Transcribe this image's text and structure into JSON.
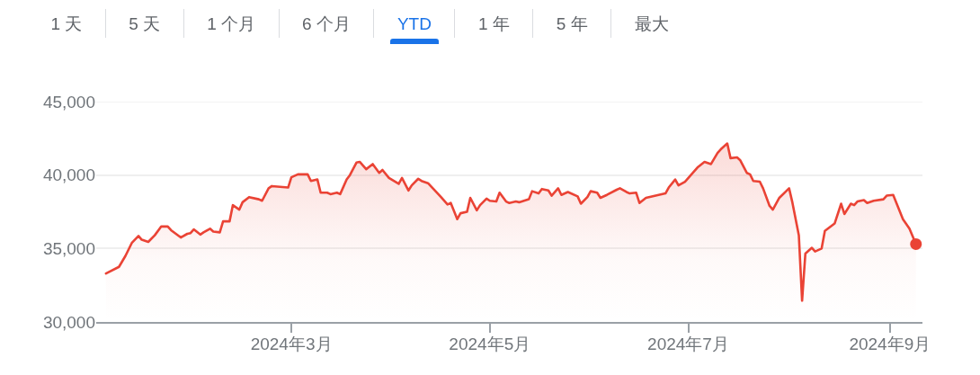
{
  "chart_data": {
    "type": "area",
    "annotations": [
      "1 天",
      "5 天",
      "1 个月",
      "6 个月",
      "YTD",
      "1 年",
      "5 年",
      "最大"
    ],
    "x": [
      "2024-01-04",
      "2024-01-08",
      "2024-01-10",
      "2024-01-12",
      "2024-01-14",
      "2024-01-15",
      "2024-01-17",
      "2024-01-19",
      "2024-01-21",
      "2024-01-23",
      "2024-01-24",
      "2024-01-27",
      "2024-01-29",
      "2024-01-30",
      "2024-01-31",
      "2024-02-02",
      "2024-02-03",
      "2024-02-05",
      "2024-02-06",
      "2024-02-08",
      "2024-02-09",
      "2024-02-11",
      "2024-02-12",
      "2024-02-14",
      "2024-02-15",
      "2024-02-17",
      "2024-02-20",
      "2024-02-21",
      "2024-02-23",
      "2024-02-24",
      "2024-02-29",
      "2024-03-01",
      "2024-03-03",
      "2024-03-06",
      "2024-03-07",
      "2024-03-09",
      "2024-03-10",
      "2024-03-12",
      "2024-03-13",
      "2024-03-15",
      "2024-03-16",
      "2024-03-18",
      "2024-03-19",
      "2024-03-21",
      "2024-03-22",
      "2024-03-24",
      "2024-03-26",
      "2024-03-28",
      "2024-03-29",
      "2024-03-31",
      "2024-04-03",
      "2024-04-04",
      "2024-04-06",
      "2024-04-07",
      "2024-04-09",
      "2024-04-10",
      "2024-04-12",
      "2024-04-16",
      "2024-04-18",
      "2024-04-19",
      "2024-04-21",
      "2024-04-22",
      "2024-04-24",
      "2024-04-25",
      "2024-04-27",
      "2024-04-28",
      "2024-04-30",
      "2024-05-01",
      "2024-05-03",
      "2024-05-04",
      "2024-05-06",
      "2024-05-07",
      "2024-05-09",
      "2024-05-10",
      "2024-05-13",
      "2024-05-14",
      "2024-05-16",
      "2024-05-17",
      "2024-05-19",
      "2024-05-20",
      "2024-05-22",
      "2024-05-23",
      "2024-05-25",
      "2024-05-28",
      "2024-05-29",
      "2024-05-31",
      "2024-06-01",
      "2024-06-03",
      "2024-06-04",
      "2024-06-06",
      "2024-06-09",
      "2024-06-10",
      "2024-06-12",
      "2024-06-13",
      "2024-06-15",
      "2024-06-16",
      "2024-06-18",
      "2024-06-21",
      "2024-06-24",
      "2024-06-25",
      "2024-06-27",
      "2024-06-28",
      "2024-06-30",
      "2024-07-04",
      "2024-07-06",
      "2024-07-08",
      "2024-07-10",
      "2024-07-11",
      "2024-07-13",
      "2024-07-14",
      "2024-07-16",
      "2024-07-17",
      "2024-07-19",
      "2024-07-20",
      "2024-07-21",
      "2024-07-23",
      "2024-07-24",
      "2024-07-26",
      "2024-07-27",
      "2024-07-29",
      "2024-08-01",
      "2024-08-02",
      "2024-08-04",
      "2024-08-05",
      "2024-08-06",
      "2024-08-08",
      "2024-08-09",
      "2024-08-11",
      "2024-08-12",
      "2024-08-15",
      "2024-08-17",
      "2024-08-18",
      "2024-08-20",
      "2024-08-21",
      "2024-08-22",
      "2024-08-24",
      "2024-08-25",
      "2024-08-27",
      "2024-08-30",
      "2024-08-31",
      "2024-09-02",
      "2024-09-05",
      "2024-09-07",
      "2024-09-09"
    ],
    "series": [
      {
        "color": "#ea4335",
        "values": [
          33300,
          33750,
          34500,
          35400,
          35850,
          35600,
          35450,
          35900,
          36500,
          36500,
          36250,
          35750,
          36000,
          36050,
          36300,
          35950,
          36100,
          36350,
          36150,
          36100,
          36850,
          36850,
          37950,
          37650,
          38150,
          38500,
          38350,
          38250,
          39100,
          39250,
          39150,
          39850,
          40050,
          40050,
          39600,
          39700,
          38800,
          38800,
          38700,
          38800,
          38700,
          39700,
          40000,
          40850,
          40900,
          40400,
          40750,
          40150,
          40350,
          39800,
          39400,
          39800,
          38950,
          39300,
          39750,
          39600,
          39450,
          38500,
          38000,
          38100,
          37000,
          37400,
          37500,
          38450,
          37600,
          37950,
          38400,
          38250,
          38200,
          38800,
          38200,
          38100,
          38200,
          38150,
          38350,
          38900,
          38750,
          39050,
          38950,
          38600,
          39100,
          38650,
          38850,
          38550,
          38050,
          38500,
          38900,
          38800,
          38450,
          38650,
          39000,
          39100,
          38850,
          38750,
          38800,
          38100,
          38450,
          38600,
          38750,
          39150,
          39700,
          39300,
          39550,
          40550,
          40900,
          40750,
          41500,
          41750,
          42150,
          41150,
          41200,
          41000,
          40150,
          40050,
          39600,
          39550,
          39100,
          37900,
          37650,
          38450,
          39100,
          38150,
          35900,
          31450,
          34650,
          35050,
          34800,
          35000,
          36200,
          36700,
          38050,
          37350,
          38050,
          37950,
          38200,
          38300,
          38100,
          38250,
          38350,
          38600,
          38650,
          37000,
          36350,
          35300
        ]
      },
      {
        "type": "scatter",
        "color": "#ea4335",
        "marker": "circle",
        "x": [
          "2024-09-09"
        ],
        "values": [
          35300
        ]
      }
    ],
    "xlim": [
      "2024-01-01",
      "2024-09-11"
    ],
    "xticks": [
      {
        "value": "2024-03-01",
        "label": "2024年3月"
      },
      {
        "value": "2024-05-01",
        "label": "2024年5月"
      },
      {
        "value": "2024-07-01",
        "label": "2024年7月"
      },
      {
        "value": "2024-09-01",
        "label": "2024年9月"
      }
    ],
    "ylim": [
      30000,
      45000
    ],
    "yticks": [
      {
        "value": 30000,
        "label": "30,000"
      },
      {
        "value": 35000,
        "label": "35,000"
      },
      {
        "value": 40000,
        "label": "40,000"
      },
      {
        "value": 45000,
        "label": "45,000"
      }
    ],
    "grid": "y"
  }
}
